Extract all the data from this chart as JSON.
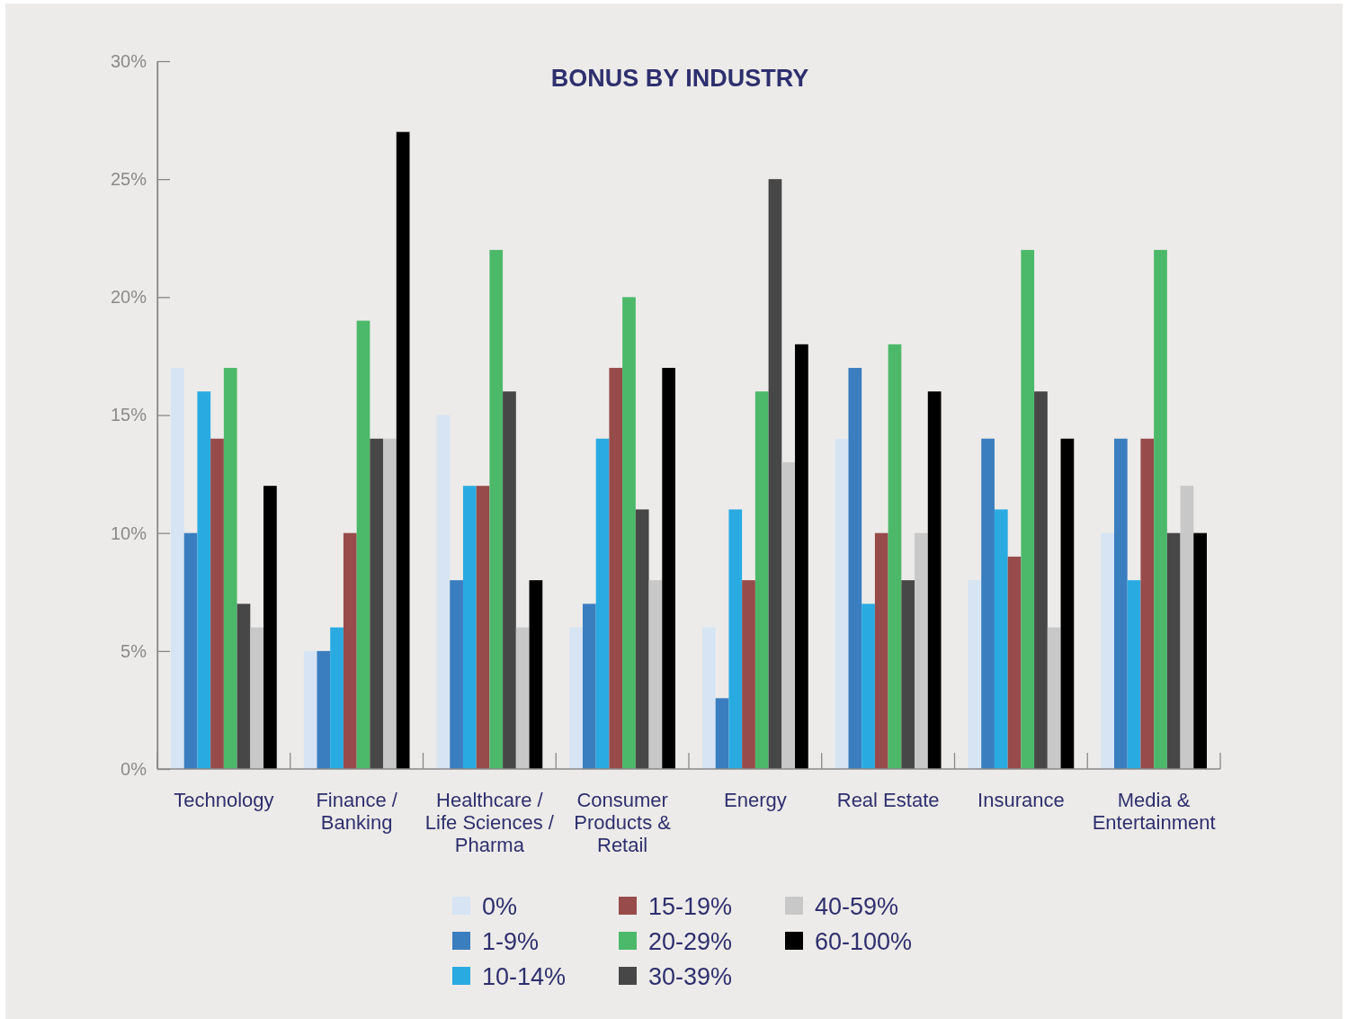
{
  "chart_data": {
    "type": "bar",
    "title": "BONUS BY INDUSTRY",
    "categories": [
      "Technology",
      "Finance / Banking",
      "Healthcare / Life Sciences / Pharma",
      "Consumer Products & Retail",
      "Energy",
      "Real Estate",
      "Insurance",
      "Media & Entertainment"
    ],
    "series": [
      {
        "name": "0%",
        "color": "#d6e4f3",
        "values": [
          17,
          5,
          15,
          6,
          6,
          14,
          8,
          10
        ]
      },
      {
        "name": "1-9%",
        "color": "#3a7ebf",
        "values": [
          10,
          5,
          8,
          7,
          3,
          17,
          14,
          14
        ]
      },
      {
        "name": "10-14%",
        "color": "#29abe2",
        "values": [
          16,
          6,
          12,
          14,
          11,
          7,
          11,
          8
        ]
      },
      {
        "name": "15-19%",
        "color": "#974b4b",
        "values": [
          14,
          10,
          12,
          17,
          8,
          10,
          9,
          14
        ]
      },
      {
        "name": "20-29%",
        "color": "#4cb96a",
        "values": [
          17,
          19,
          22,
          20,
          16,
          18,
          22,
          22
        ]
      },
      {
        "name": "30-39%",
        "color": "#474747",
        "values": [
          7,
          14,
          16,
          11,
          25,
          8,
          16,
          10
        ]
      },
      {
        "name": "40-59%",
        "color": "#c8c8c8",
        "values": [
          6,
          14,
          6,
          8,
          13,
          10,
          6,
          12
        ]
      },
      {
        "name": "60-100%",
        "color": "#000000",
        "values": [
          12,
          27,
          8,
          17,
          18,
          16,
          14,
          10
        ]
      }
    ],
    "ylim": [
      0,
      30
    ],
    "yticks": [
      {
        "value": 0,
        "label": "0%"
      },
      {
        "value": 5,
        "label": "5%"
      },
      {
        "value": 10,
        "label": "10%"
      },
      {
        "value": 15,
        "label": "15%"
      },
      {
        "value": 20,
        "label": "20%"
      },
      {
        "value": 25,
        "label": "25%"
      },
      {
        "value": 30,
        "label": "30%"
      }
    ],
    "grid": false,
    "legend": "bottom"
  }
}
